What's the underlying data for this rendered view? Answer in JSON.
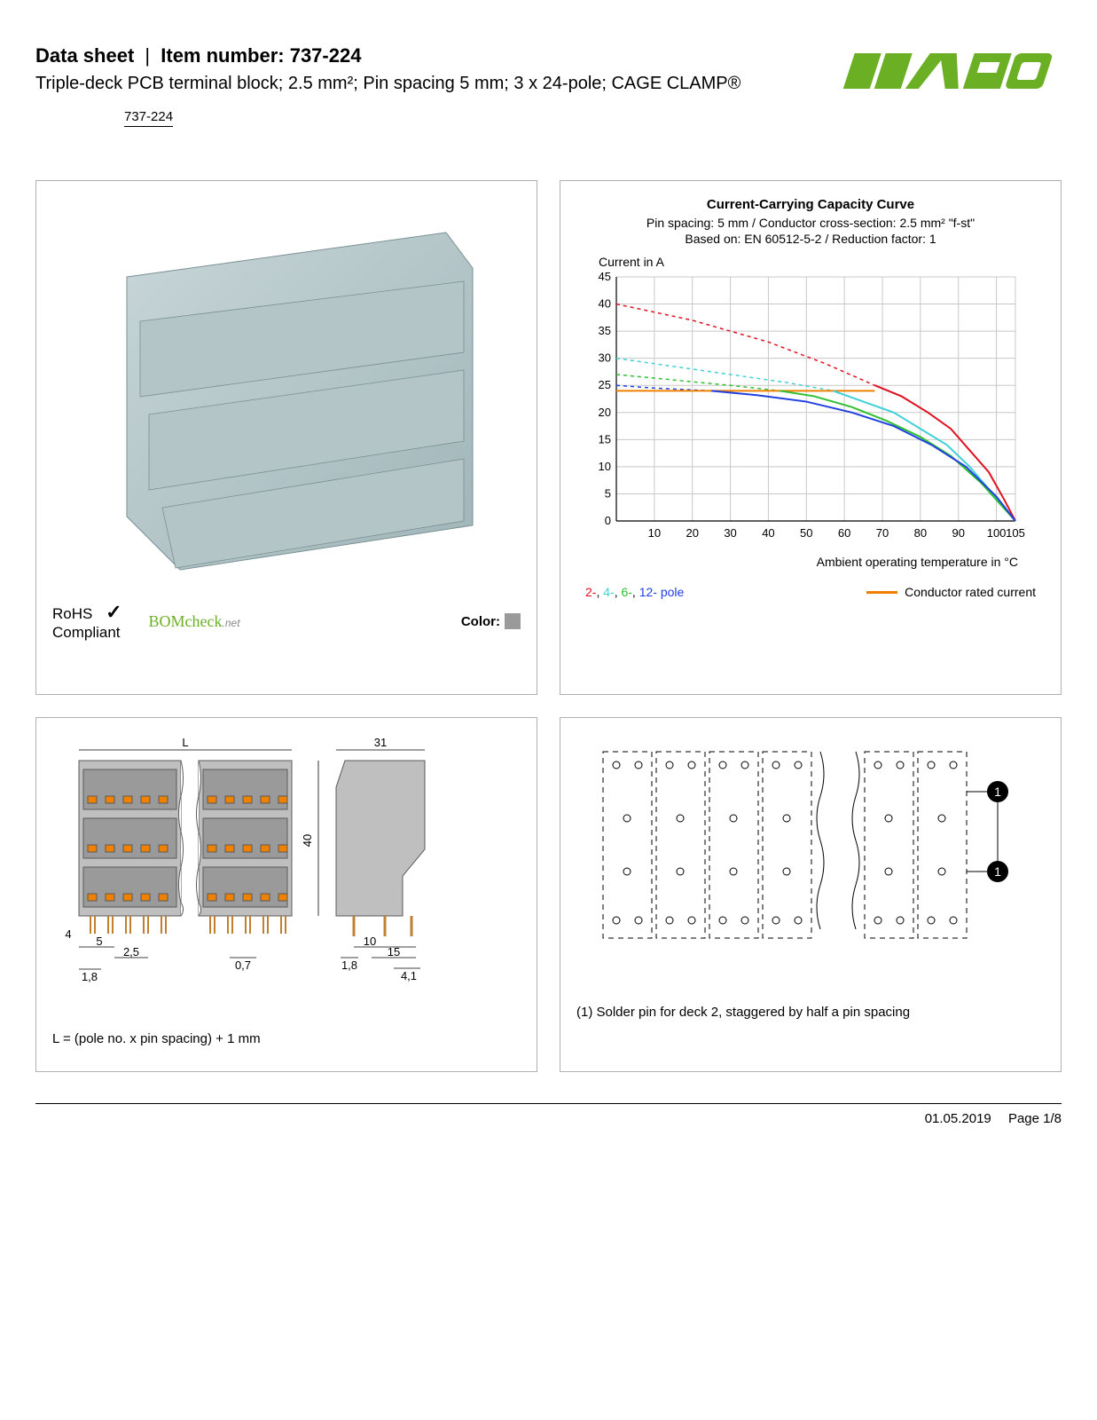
{
  "header": {
    "doc_type": "Data sheet",
    "item_label": "Item number: 737-224",
    "subtitle": "Triple-deck PCB terminal block; 2.5 mm²; Pin spacing 5 mm; 3 x 24-pole; CAGE CLAMP®",
    "item_link": "737-224",
    "logo_color": "#6bb024"
  },
  "product_panel": {
    "rohs_line1": "RoHS",
    "rohs_line2": "Compliant",
    "bomcheck": "BOMcheck",
    "bomcheck_suffix": ".net",
    "color_label": "Color:",
    "color_swatch": "#9a9a9a",
    "block_color": "#b4c5c8",
    "block_shadow": "#8fa3a6"
  },
  "chart": {
    "title": "Current-Carrying Capacity Curve",
    "sub1": "Pin spacing: 5 mm / Conductor cross-section: 2.5 mm² \"f-st\"",
    "sub2": "Based on: EN 60512-5-2 / Reduction factor: 1",
    "ylabel": "Current in A",
    "xlabel": "Ambient operating temperature in °C",
    "ylim": [
      0,
      45
    ],
    "ytick_step": 5,
    "yticks": [
      "0",
      "5",
      "10",
      "15",
      "20",
      "25",
      "30",
      "35",
      "40",
      "45"
    ],
    "xlim": [
      0,
      105
    ],
    "xticks": [
      "10",
      "20",
      "30",
      "40",
      "50",
      "60",
      "70",
      "80",
      "90",
      "100",
      "105"
    ],
    "grid_color": "#c8c8c8",
    "background": "#ffffff",
    "series": [
      {
        "name": "2-pole-dashed",
        "color": "#e01020",
        "dash": "4,4",
        "width": 1.5,
        "points": [
          [
            0,
            40
          ],
          [
            20,
            37
          ],
          [
            40,
            33
          ],
          [
            55,
            29
          ],
          [
            68,
            25
          ]
        ]
      },
      {
        "name": "4-pole-dashed",
        "color": "#40d0d8",
        "dash": "4,4",
        "width": 1.5,
        "points": [
          [
            0,
            30
          ],
          [
            15,
            28.5
          ],
          [
            30,
            27
          ],
          [
            45,
            25.5
          ],
          [
            57,
            24
          ]
        ]
      },
      {
        "name": "6-pole-dashed",
        "color": "#30c030",
        "dash": "4,4",
        "width": 1.5,
        "points": [
          [
            0,
            27
          ],
          [
            15,
            26
          ],
          [
            30,
            25
          ],
          [
            43,
            24
          ]
        ]
      },
      {
        "name": "12-pole-dashed",
        "color": "#2040e0",
        "dash": "4,4",
        "width": 1.5,
        "points": [
          [
            0,
            25
          ],
          [
            10,
            24.5
          ],
          [
            25,
            24
          ]
        ]
      },
      {
        "name": "conductor-rated",
        "color": "#f08000",
        "dash": "",
        "width": 2,
        "points": [
          [
            0,
            24
          ],
          [
            68,
            24
          ]
        ]
      },
      {
        "name": "2-pole",
        "color": "#e01020",
        "dash": "",
        "width": 2,
        "points": [
          [
            68,
            25
          ],
          [
            75,
            23
          ],
          [
            82,
            20
          ],
          [
            88,
            17
          ],
          [
            93,
            13
          ],
          [
            98,
            9
          ],
          [
            102,
            4
          ],
          [
            105,
            0
          ]
        ]
      },
      {
        "name": "4-pole",
        "color": "#40d0d8",
        "dash": "",
        "width": 2,
        "points": [
          [
            57,
            24
          ],
          [
            65,
            22
          ],
          [
            73,
            20
          ],
          [
            80,
            17
          ],
          [
            87,
            14
          ],
          [
            93,
            10
          ],
          [
            99,
            5
          ],
          [
            105,
            0
          ]
        ]
      },
      {
        "name": "6-pole",
        "color": "#30c030",
        "dash": "",
        "width": 2,
        "points": [
          [
            43,
            24
          ],
          [
            52,
            23
          ],
          [
            62,
            21
          ],
          [
            71,
            18.5
          ],
          [
            80,
            15.5
          ],
          [
            88,
            12
          ],
          [
            96,
            7
          ],
          [
            105,
            0
          ]
        ]
      },
      {
        "name": "12-pole",
        "color": "#2040e0",
        "dash": "",
        "width": 2,
        "points": [
          [
            25,
            24
          ],
          [
            37,
            23.2
          ],
          [
            50,
            22
          ],
          [
            62,
            20
          ],
          [
            73,
            17.5
          ],
          [
            83,
            14
          ],
          [
            92,
            10
          ],
          [
            100,
            4.5
          ],
          [
            105,
            0
          ]
        ]
      }
    ],
    "legend_poles": [
      {
        "label": "2-",
        "color": "#e01020"
      },
      {
        "label": "4-",
        "color": "#40d0d8"
      },
      {
        "label": "6-",
        "color": "#30c030"
      },
      {
        "label": "12-",
        "color": "#2040e0"
      }
    ],
    "legend_pole_word": "pole",
    "legend_crc": "Conductor rated current",
    "crc_color": "#f08000"
  },
  "dim_panel": {
    "formula": "L = (pole no. x pin spacing) + 1 mm",
    "dims": {
      "L": "L",
      "W": "31",
      "H": "40",
      "a": "4",
      "b": "5",
      "c": "2,5",
      "d": "1,8",
      "e": "0,7",
      "f": "1,8",
      "g": "10",
      "h": "15",
      "i": "4,1"
    },
    "block_fill": "#bfbfbf",
    "block_stroke": "#5a5a5a",
    "clamp_color": "#f08000"
  },
  "layout_panel": {
    "note": "(1) Solder pin for deck 2, staggered by half a pin spacing",
    "marker_label": "1"
  },
  "footer": {
    "date": "01.05.2019",
    "page": "Page 1/8"
  }
}
